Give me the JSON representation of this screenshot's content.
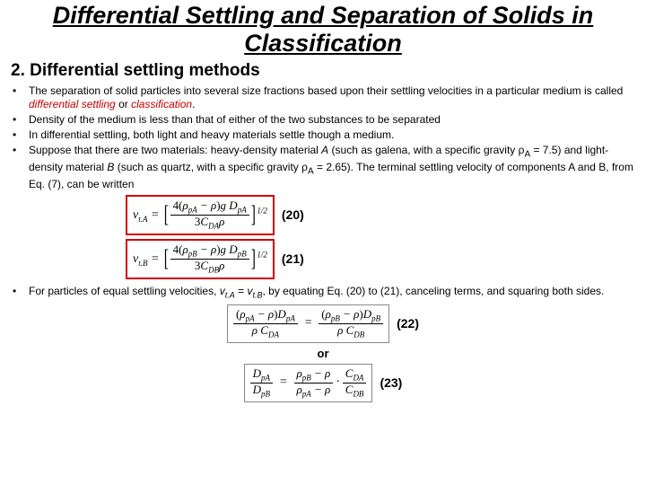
{
  "title": "Differential Settling and Separation of Solids in Classification",
  "subtitle": "2. Differential settling methods",
  "bullets": [
    {
      "pre": "The separation of solid particles into several size fractions based upon their settling velocities in a particular medium is called ",
      "em1": "differential settling",
      "mid": " or ",
      "em2": "classification",
      "post": "."
    },
    {
      "text": "Density of the medium is less than that of either of the two substances to be separated"
    },
    {
      "text": "In differential settling, both light and heavy materials settle though a medium."
    },
    {
      "html": "Suppose that there are two materials: heavy-density material <i>A</i> (such as galena, with a specific gravity ρ<sub>A</sub> = 7.5) and light-density material <i>B</i> (such as quartz, with a specific gravity ρ<sub>A</sub> = 2.65). The terminal settling velocity of components A and B, from Eq. (7), can be written"
    }
  ],
  "eq20": {
    "label": "(20)"
  },
  "eq21": {
    "label": "(21)"
  },
  "bullet5": {
    "pre": "For particles of equal settling velocities, ",
    "vta": "v",
    "sta": "t.A",
    "eq": " = ",
    "vtb": "v",
    "stb": "t.B",
    "post": ", by equating Eq. (20) to (21), canceling terms, and squaring both sides."
  },
  "eq22": {
    "label": "(22)"
  },
  "or": "or",
  "eq23": {
    "label": "(23)"
  }
}
